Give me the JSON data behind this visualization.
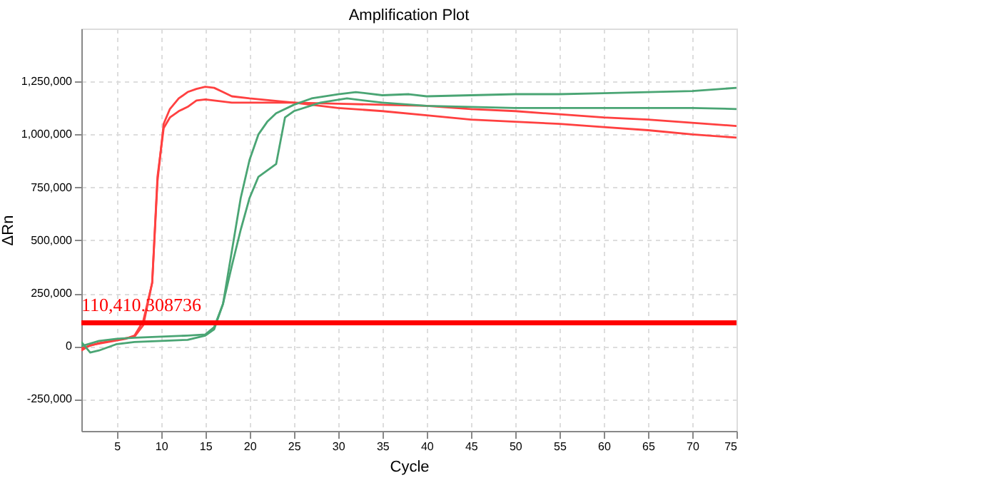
{
  "chart_data": {
    "type": "line",
    "title": "Amplification Plot",
    "xlabel": "Cycle",
    "ylabel": "ΔRn",
    "xlim": [
      1,
      75
    ],
    "xticks": [
      5,
      10,
      15,
      20,
      25,
      30,
      35,
      40,
      45,
      50,
      55,
      60,
      65,
      70,
      75
    ],
    "ylim": [
      -400000,
      1500000
    ],
    "yticks": [
      {
        "value": -250000,
        "label": "-250,000"
      },
      0,
      {
        "value": 250000,
        "label": "250,000"
      },
      {
        "value": 500000,
        "label": "500,000"
      },
      {
        "value": 750000,
        "label": "750,000"
      },
      {
        "value": 1000000,
        "label": "1,000,000"
      },
      {
        "value": 1250000,
        "label": "1,250,000"
      }
    ],
    "grid": true,
    "marker": "none",
    "line_style": "solid",
    "ref_lines": [
      {
        "axis": "y",
        "value": 110410.308736,
        "label": "110,410.308736",
        "color": "#ff0000"
      }
    ],
    "series": [
      {
        "color": "#ff4040",
        "x": [
          1,
          2,
          4,
          6,
          7,
          8,
          9,
          9.6,
          10.3,
          11,
          12,
          13,
          14,
          15,
          16,
          17,
          18,
          20,
          25,
          30,
          35,
          40,
          45,
          50,
          55,
          60,
          65,
          70,
          75
        ],
        "values": [
          -20000,
          5000,
          20000,
          35000,
          50000,
          120000,
          300000,
          780000,
          1050000,
          1120000,
          1170000,
          1200000,
          1215000,
          1225000,
          1220000,
          1200000,
          1180000,
          1170000,
          1150000,
          1125000,
          1110000,
          1090000,
          1070000,
          1060000,
          1050000,
          1035000,
          1020000,
          1000000,
          985000
        ]
      },
      {
        "color": "#ff4040",
        "x": [
          1,
          3,
          5,
          7,
          8,
          9,
          9.6,
          10.3,
          11,
          12,
          13,
          14,
          15,
          16,
          18,
          20,
          25,
          30,
          35,
          40,
          45,
          50,
          55,
          60,
          65,
          70,
          75
        ],
        "values": [
          -10000,
          15000,
          30000,
          45000,
          100000,
          300000,
          800000,
          1030000,
          1080000,
          1110000,
          1130000,
          1160000,
          1165000,
          1160000,
          1150000,
          1150000,
          1150000,
          1145000,
          1140000,
          1135000,
          1120000,
          1110000,
          1095000,
          1080000,
          1070000,
          1055000,
          1040000
        ]
      },
      {
        "color": "#4aa574",
        "x": [
          1,
          2,
          3,
          5,
          7,
          10,
          13,
          15,
          16,
          17,
          18,
          19,
          20,
          21,
          22,
          23,
          25,
          27,
          30,
          32,
          35,
          38,
          40,
          45,
          50,
          55,
          60,
          65,
          70,
          75
        ],
        "values": [
          20000,
          -30000,
          -20000,
          10000,
          20000,
          25000,
          30000,
          50000,
          80000,
          200000,
          450000,
          700000,
          880000,
          1000000,
          1060000,
          1100000,
          1140000,
          1170000,
          1190000,
          1200000,
          1185000,
          1190000,
          1180000,
          1185000,
          1190000,
          1190000,
          1195000,
          1200000,
          1205000,
          1220000
        ]
      },
      {
        "color": "#4aa574",
        "x": [
          1,
          3,
          5,
          7,
          10,
          13,
          15,
          16,
          17,
          18,
          19,
          20,
          21,
          22,
          23,
          24,
          25,
          28,
          31,
          35,
          40,
          45,
          50,
          60,
          70,
          75
        ],
        "values": [
          0,
          25000,
          35000,
          40000,
          45000,
          50000,
          55000,
          90000,
          200000,
          380000,
          550000,
          700000,
          800000,
          830000,
          860000,
          1080000,
          1110000,
          1150000,
          1170000,
          1150000,
          1135000,
          1130000,
          1125000,
          1125000,
          1125000,
          1120000
        ]
      }
    ]
  }
}
